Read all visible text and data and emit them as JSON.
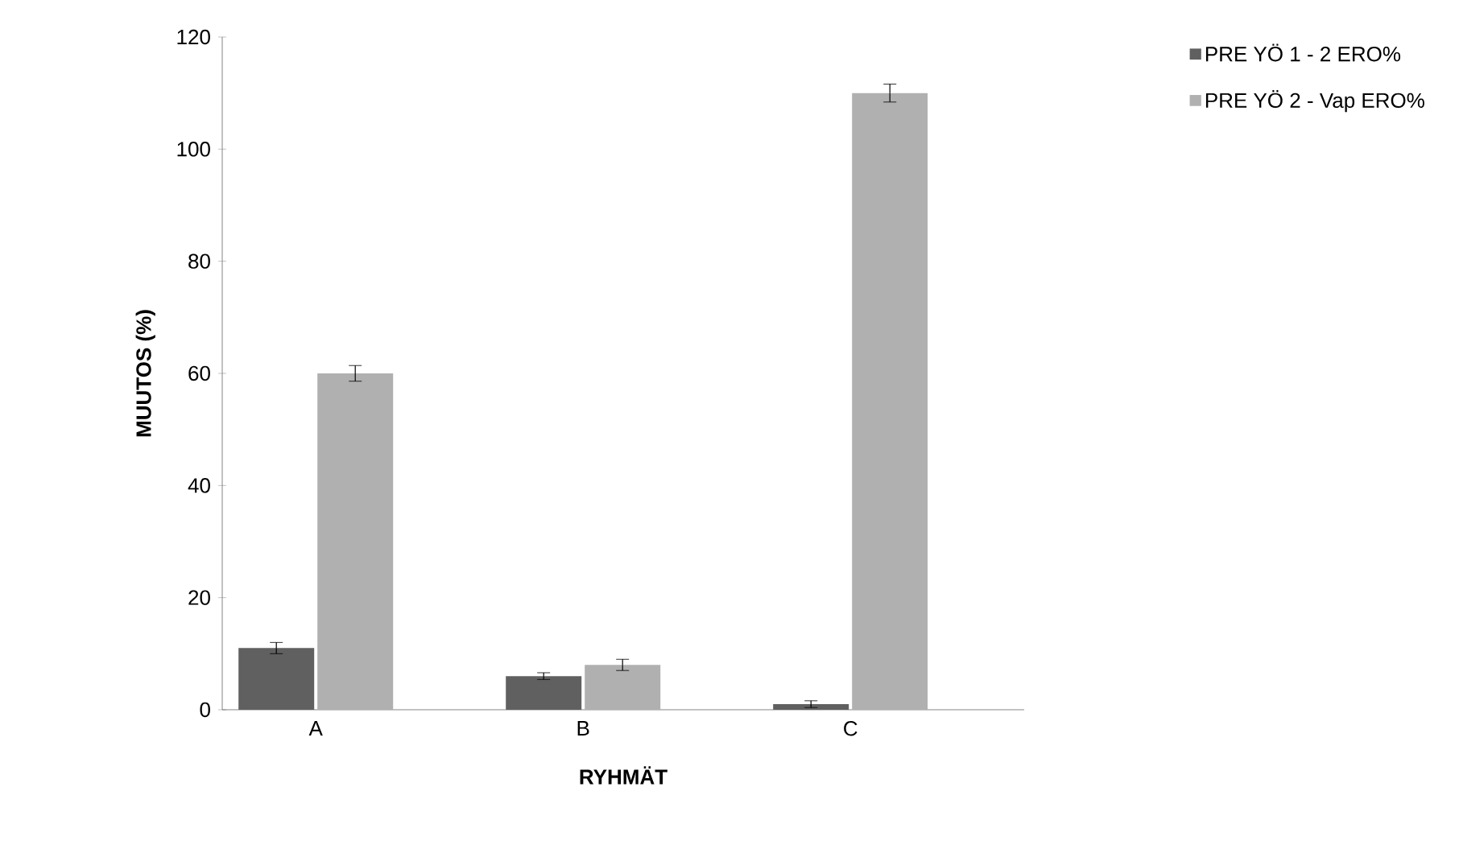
{
  "chart_data": {
    "type": "bar",
    "xlabel": "RYHMÄT",
    "ylabel": "MUUTOS (%)",
    "categories": [
      "A",
      "B",
      "C"
    ],
    "series": [
      {
        "name": "PRE YÖ 1 - 2 ERO%",
        "color": "#606060",
        "values": [
          11,
          6,
          1
        ],
        "errors": [
          1,
          0.6,
          0.6
        ]
      },
      {
        "name": "PRE YÖ 2 - Vap ERO%",
        "color": "#b0b0b0",
        "values": [
          60,
          8,
          110
        ],
        "errors": [
          1.4,
          1,
          1.6
        ]
      }
    ],
    "ylim": [
      0,
      120
    ],
    "yticks": [
      0,
      20,
      40,
      60,
      80,
      100,
      120
    ],
    "grid": false,
    "legend": "right"
  }
}
